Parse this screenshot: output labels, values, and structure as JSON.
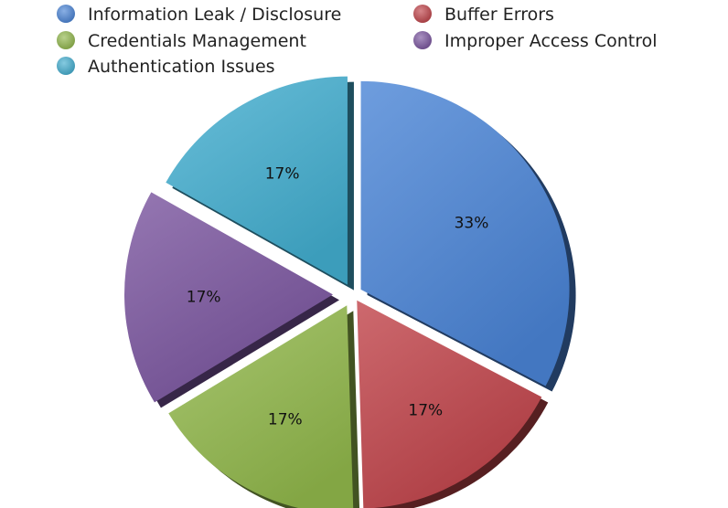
{
  "chart_data": {
    "type": "pie",
    "title": "",
    "legend_placement": "top",
    "slices": [
      {
        "name": "Information Leak / Disclosure",
        "value": 33,
        "label": "33%",
        "color": "#4a84d6"
      },
      {
        "name": "Buffer Errors",
        "value": 17,
        "label": "17%",
        "color": "#c0444a"
      },
      {
        "name": "Credentials Management",
        "value": 17,
        "label": "17%",
        "color": "#92b84c"
      },
      {
        "name": "Improper Access Control",
        "value": 17,
        "label": "17%",
        "color": "#7a559f"
      },
      {
        "name": "Authentication Issues",
        "value": 17,
        "label": "17%",
        "color": "#43aed0"
      }
    ],
    "exploded": true,
    "style": "3d"
  }
}
